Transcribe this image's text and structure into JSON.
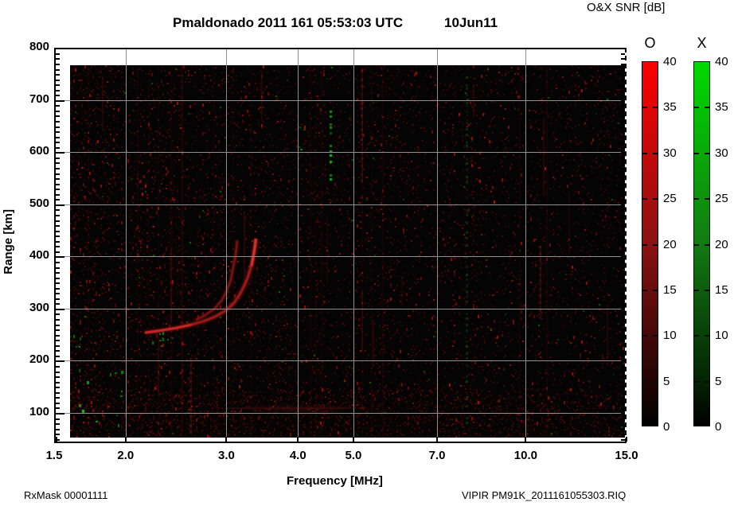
{
  "title": {
    "main": "Pmaldonado 2011 161 05:53:03 UTC",
    "date": "10Jun11"
  },
  "colorbar_header": "O&X SNR [dB]",
  "footer": {
    "rx_mask": "RxMask 00001111",
    "file": "VIPIR  PM91K_2011161055303.RIQ"
  },
  "chart_data": {
    "type": "heatmap",
    "title": "Pmaldonado 2011 161 05:53:03 UTC",
    "date_label": "10Jun11",
    "xlabel": "Frequency [MHz]",
    "ylabel": "Range [km]",
    "x_scale": "log",
    "xlim": [
      1.5,
      15.0
    ],
    "ylim_km": [
      40,
      800
    ],
    "x_ticks": [
      2.0,
      3.0,
      4.0,
      5.0,
      7.0,
      10.0
    ],
    "x_tick_all": [
      1.5,
      2.0,
      3.0,
      4.0,
      5.0,
      7.0,
      10.0,
      15.0
    ],
    "x_tick_labels": [
      "1.5",
      "2.0",
      "3.0",
      "4.0",
      "5.0",
      "7.0",
      "10.0",
      "15.0"
    ],
    "y_tick_values": [
      100,
      200,
      300,
      400,
      500,
      600,
      700,
      800
    ],
    "y_tick_labels": [
      "100",
      "200",
      "300",
      "400",
      "500",
      "600",
      "700",
      "800"
    ],
    "y_minor_step_km": 10,
    "grid": true,
    "grid_color": "#8f8f8f",
    "background_color": "#040404",
    "colorbar": {
      "title": "O&X SNR [dB]",
      "units": "dB",
      "range": [
        0,
        40
      ],
      "tick_step": 5,
      "tick_values": [
        40,
        35,
        30,
        25,
        20,
        15,
        10,
        5,
        0
      ],
      "tick_labels": [
        "40",
        "35",
        "30",
        "25",
        "20",
        "15",
        "10",
        "5",
        "0"
      ],
      "bars": [
        {
          "label": "O",
          "top_color": "#fb0000",
          "meaning": "O-mode SNR"
        },
        {
          "label": "X",
          "top_color": "#00d900",
          "meaning": "X-mode SNR"
        }
      ]
    },
    "traces": {
      "o_mode_main": {
        "color": "#b61c1c",
        "points_f_km": [
          [
            2.17,
            254
          ],
          [
            2.3,
            258
          ],
          [
            2.45,
            263
          ],
          [
            2.6,
            269
          ],
          [
            2.74,
            276
          ],
          [
            2.87,
            285
          ],
          [
            2.99,
            296
          ],
          [
            3.09,
            310
          ],
          [
            3.18,
            331
          ],
          [
            3.26,
            356
          ],
          [
            3.32,
            384
          ],
          [
            3.355,
            410
          ],
          [
            3.375,
            432
          ]
        ]
      },
      "o_mode_inner": {
        "color": "#9a1717",
        "points_f_km": [
          [
            2.66,
            279
          ],
          [
            2.76,
            288
          ],
          [
            2.86,
            300
          ],
          [
            2.94,
            315
          ],
          [
            3.0,
            333
          ],
          [
            3.05,
            354
          ],
          [
            3.08,
            377
          ],
          [
            3.11,
            400
          ],
          [
            3.125,
            418
          ],
          [
            3.13,
            429
          ]
        ]
      }
    },
    "features": {
      "green_streaks": [
        {
          "f": 4.56,
          "km_min": 545,
          "km_max": 700,
          "faint": false
        },
        {
          "f": 7.9,
          "km_min": 80,
          "km_max": 740,
          "faint": true
        }
      ],
      "green_clusters": [
        {
          "f": 2.28,
          "km": 245,
          "spread_f": 0.06,
          "spread_km": 18,
          "n": 9
        },
        {
          "f": 1.82,
          "km": 130,
          "spread_f": 0.1,
          "spread_km": 60,
          "n": 12
        },
        {
          "f": 1.66,
          "km": 255,
          "spread_f": 0.03,
          "spread_km": 35,
          "n": 5
        },
        {
          "f": 4.0,
          "km": 640,
          "spread_f": 0.05,
          "spread_km": 45,
          "n": 4
        }
      ],
      "red_streaks": [
        {
          "f": 5.18,
          "km_min": 540,
          "km_max": 755
        },
        {
          "f": 10.6,
          "km_min": 280,
          "km_max": 420
        },
        {
          "f": 2.6,
          "km_min": 60,
          "km_max": 200
        }
      ],
      "e_region_smear": {
        "f_min": 3.0,
        "f_max": 5.3,
        "km": 108,
        "alpha": 0.22
      }
    },
    "noise": {
      "seed": 1337,
      "dim_dots": 9000,
      "bright_dots": 1100,
      "green_dots": 110,
      "bottom_band_dots": 1600,
      "hot_columns": 30,
      "hot_segments": 14
    }
  }
}
